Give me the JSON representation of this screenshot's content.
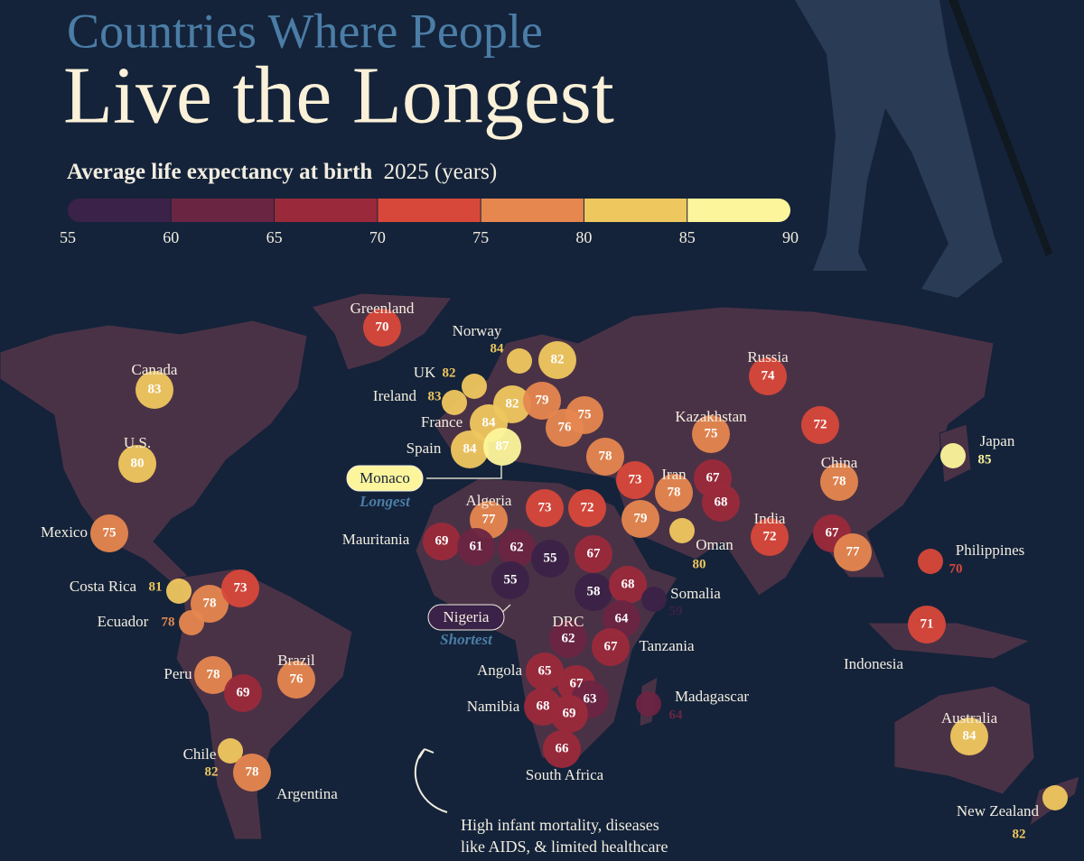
{
  "header": {
    "title_line1": "Countries Where People",
    "title_line2": "Live the Longest",
    "subtitle_bold": "Average life expectancy at birth",
    "subtitle_rest": "2025 (years)"
  },
  "scale": {
    "ticks": [
      55,
      60,
      65,
      70,
      75,
      80,
      85,
      90
    ],
    "colors": [
      "#3b2248",
      "#6a2542",
      "#9a2a3b",
      "#d8483a",
      "#e5874f",
      "#efc75f",
      "#fdf59c"
    ]
  },
  "labels": [
    {
      "name": "Greenland",
      "value": 70
    },
    {
      "name": "Norway",
      "value": 84
    },
    {
      "value": 82
    },
    {
      "name": "Russia",
      "value": 74
    },
    {
      "name": "UK",
      "value": 82
    },
    {
      "name": "Ireland",
      "value": 83
    },
    {
      "value": 82
    },
    {
      "value": 79
    },
    {
      "name": "Canada",
      "value": 83
    },
    {
      "name": "France",
      "value": 84
    },
    {
      "value": 75
    },
    {
      "value": 76
    },
    {
      "name": "Kazakhstan",
      "value": 75
    },
    {
      "value": 72
    },
    {
      "name": "Spain",
      "value": 84
    },
    {
      "value": 87
    },
    {
      "name": "U.S.",
      "value": 80
    },
    {
      "name": "Japan",
      "value": 85
    },
    {
      "value": 78
    },
    {
      "value": 73
    },
    {
      "name": "Iran",
      "value": 78
    },
    {
      "value": 67
    },
    {
      "value": 68
    },
    {
      "name": "China",
      "value": 78
    },
    {
      "name": "Algeria",
      "value": 77
    },
    {
      "value": 73
    },
    {
      "value": 72
    },
    {
      "value": 79
    },
    {
      "name": "India",
      "value": 72
    },
    {
      "value": 67
    },
    {
      "value": 77
    },
    {
      "name": "Mexico",
      "value": 75
    },
    {
      "name": "Mauritania",
      "value": 69
    },
    {
      "value": 61
    },
    {
      "value": 62
    },
    {
      "value": 55
    },
    {
      "value": 67
    },
    {
      "name": "Oman",
      "value": 80
    },
    {
      "name": "Philippines",
      "value": 70
    },
    {
      "value": 55
    },
    {
      "value": 58
    },
    {
      "value": 68
    },
    {
      "name": "Costa Rica",
      "value": 81
    },
    {
      "value": 78
    },
    {
      "value": 73
    },
    {
      "name": "Somalia",
      "value": 59
    },
    {
      "name": "DRC",
      "value": 62
    },
    {
      "value": 64
    },
    {
      "name": "Ecuador",
      "value": 78
    },
    {
      "value": 71
    },
    {
      "name": "Tanzania",
      "value": 67
    },
    {
      "name": "Indonesia"
    },
    {
      "name": "Brazil",
      "value": 76
    },
    {
      "name": "Angola",
      "value": 65
    },
    {
      "name": "Peru",
      "value": 78
    },
    {
      "value": 67
    },
    {
      "value": 69
    },
    {
      "name": "Madagascar",
      "value": 64
    },
    {
      "value": 63
    },
    {
      "name": "Namibia",
      "value": 68
    },
    {
      "value": 69
    },
    {
      "name": "Australia",
      "value": 84
    },
    {
      "name": "Chile",
      "value": 82
    },
    {
      "name": "South Africa",
      "value": 66
    },
    {
      "name": "Argentina",
      "value": 78
    },
    {
      "name": "New Zealand",
      "value": 82
    }
  ],
  "annotations": [
    {
      "label": "Monaco",
      "note": "Longest"
    },
    {
      "label": "Nigeria",
      "note": "Shortest"
    }
  ],
  "footnote": [
    "High infant mortality, diseases",
    "like AIDS, & limited healthcare"
  ]
}
